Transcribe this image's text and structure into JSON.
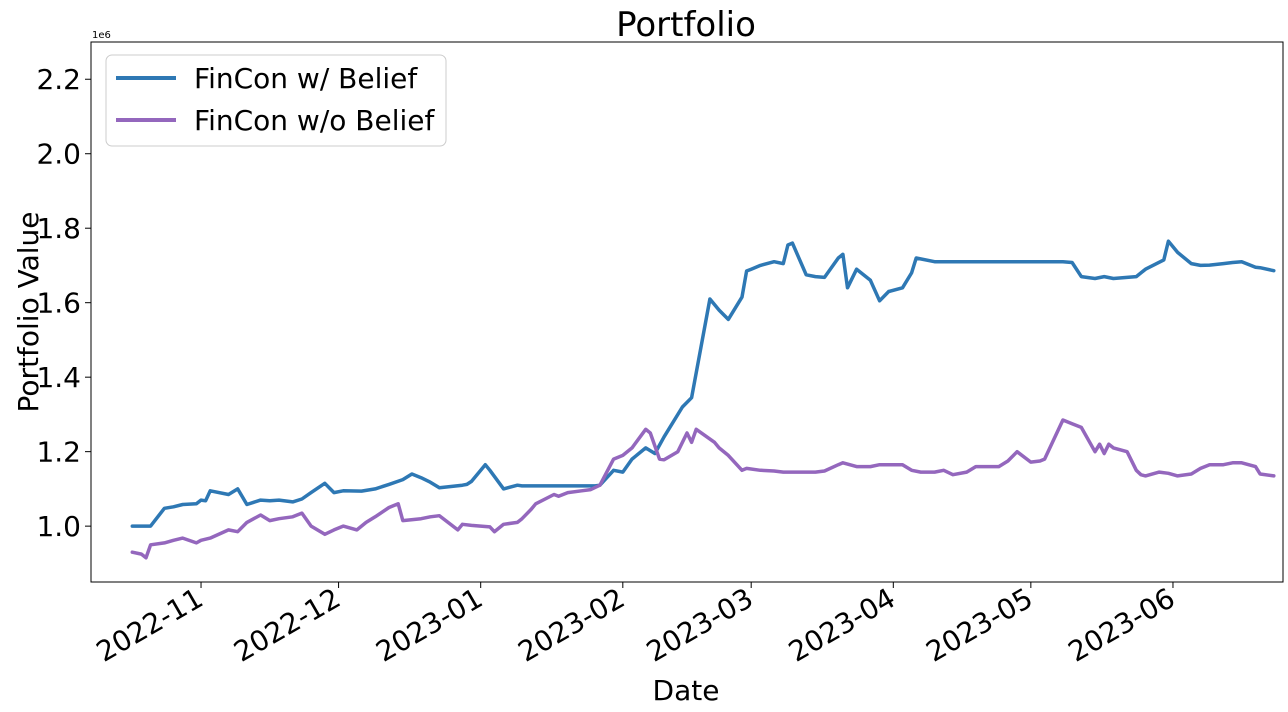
{
  "chart_data": {
    "type": "line",
    "title": "Portfolio",
    "xlabel": "Date",
    "ylabel": "Portfolio Value",
    "y_offset_label": "1e6",
    "ylim": [
      0.85,
      2.3
    ],
    "xlim": [
      "2022-10-08",
      "2023-06-25"
    ],
    "grid": false,
    "legend_position": "top-left",
    "x_ticks": [
      "2022-11",
      "2022-12",
      "2023-01",
      "2023-02",
      "2023-03",
      "2023-04",
      "2023-05",
      "2023-06"
    ],
    "x_tick_dates": [
      "2022-11-01",
      "2022-12-01",
      "2023-01-01",
      "2023-02-01",
      "2023-03-01",
      "2023-04-01",
      "2023-05-01",
      "2023-06-01"
    ],
    "y_ticks": [
      1.0,
      1.2,
      1.4,
      1.6,
      1.8,
      2.0,
      2.2
    ],
    "y_tick_labels": [
      "1.0",
      "1.2",
      "1.4",
      "1.6",
      "1.8",
      "2.0",
      "2.2"
    ],
    "series": [
      {
        "name": "FinCon w/ Belief",
        "color": "#2e78b4",
        "points": [
          [
            "2022-10-17",
            1.0
          ],
          [
            "2022-10-20",
            1.0
          ],
          [
            "2022-10-21",
            1.0
          ],
          [
            "2022-10-24",
            1.048
          ],
          [
            "2022-10-26",
            1.052
          ],
          [
            "2022-10-28",
            1.058
          ],
          [
            "2022-10-31",
            1.06
          ],
          [
            "2022-11-01",
            1.07
          ],
          [
            "2022-11-02",
            1.068
          ],
          [
            "2022-11-03",
            1.095
          ],
          [
            "2022-11-07",
            1.085
          ],
          [
            "2022-11-09",
            1.1
          ],
          [
            "2022-11-11",
            1.058
          ],
          [
            "2022-11-14",
            1.07
          ],
          [
            "2022-11-16",
            1.068
          ],
          [
            "2022-11-18",
            1.07
          ],
          [
            "2022-11-21",
            1.065
          ],
          [
            "2022-11-23",
            1.073
          ],
          [
            "2022-11-25",
            1.09
          ],
          [
            "2022-11-28",
            1.115
          ],
          [
            "2022-11-30",
            1.09
          ],
          [
            "2022-12-02",
            1.095
          ],
          [
            "2022-12-06",
            1.094
          ],
          [
            "2022-12-08",
            1.098
          ],
          [
            "2022-12-09",
            1.1
          ],
          [
            "2022-12-12",
            1.112
          ],
          [
            "2022-12-15",
            1.125
          ],
          [
            "2022-12-17",
            1.14
          ],
          [
            "2022-12-19",
            1.13
          ],
          [
            "2022-12-21",
            1.118
          ],
          [
            "2022-12-23",
            1.103
          ],
          [
            "2022-12-28",
            1.11
          ],
          [
            "2022-12-29",
            1.112
          ],
          [
            "2022-12-30",
            1.12
          ],
          [
            "2023-01-02",
            1.165
          ],
          [
            "2023-01-03",
            1.15
          ],
          [
            "2023-01-06",
            1.1
          ],
          [
            "2023-01-09",
            1.11
          ],
          [
            "2023-01-10",
            1.108
          ],
          [
            "2023-01-26",
            1.108
          ],
          [
            "2023-01-27",
            1.11
          ],
          [
            "2023-01-30",
            1.15
          ],
          [
            "2023-02-01",
            1.145
          ],
          [
            "2023-02-03",
            1.18
          ],
          [
            "2023-02-06",
            1.21
          ],
          [
            "2023-02-08",
            1.195
          ],
          [
            "2023-02-10",
            1.24
          ],
          [
            "2023-02-14",
            1.32
          ],
          [
            "2023-02-16",
            1.345
          ],
          [
            "2023-02-20",
            1.61
          ],
          [
            "2023-02-22",
            1.58
          ],
          [
            "2023-02-24",
            1.555
          ],
          [
            "2023-02-27",
            1.615
          ],
          [
            "2023-02-28",
            1.685
          ],
          [
            "2023-03-01",
            1.69
          ],
          [
            "2023-03-03",
            1.7
          ],
          [
            "2023-03-06",
            1.71
          ],
          [
            "2023-03-08",
            1.705
          ],
          [
            "2023-03-09",
            1.755
          ],
          [
            "2023-03-10",
            1.76
          ],
          [
            "2023-03-13",
            1.675
          ],
          [
            "2023-03-15",
            1.67
          ],
          [
            "2023-03-17",
            1.668
          ],
          [
            "2023-03-20",
            1.72
          ],
          [
            "2023-03-21",
            1.73
          ],
          [
            "2023-03-22",
            1.64
          ],
          [
            "2023-03-24",
            1.69
          ],
          [
            "2023-03-27",
            1.66
          ],
          [
            "2023-03-29",
            1.605
          ],
          [
            "2023-03-31",
            1.63
          ],
          [
            "2023-04-03",
            1.64
          ],
          [
            "2023-04-05",
            1.68
          ],
          [
            "2023-04-06",
            1.72
          ],
          [
            "2023-04-10",
            1.71
          ],
          [
            "2023-04-14",
            1.71
          ],
          [
            "2023-04-17",
            1.71
          ],
          [
            "2023-04-19",
            1.71
          ],
          [
            "2023-04-21",
            1.71
          ],
          [
            "2023-04-24",
            1.71
          ],
          [
            "2023-04-26",
            1.71
          ],
          [
            "2023-04-28",
            1.71
          ],
          [
            "2023-05-01",
            1.71
          ],
          [
            "2023-05-03",
            1.71
          ],
          [
            "2023-05-05",
            1.71
          ],
          [
            "2023-05-08",
            1.71
          ],
          [
            "2023-05-10",
            1.708
          ],
          [
            "2023-05-12",
            1.67
          ],
          [
            "2023-05-15",
            1.665
          ],
          [
            "2023-05-17",
            1.67
          ],
          [
            "2023-05-19",
            1.665
          ],
          [
            "2023-05-22",
            1.668
          ],
          [
            "2023-05-24",
            1.67
          ],
          [
            "2023-05-26",
            1.69
          ],
          [
            "2023-05-30",
            1.715
          ],
          [
            "2023-05-31",
            1.765
          ],
          [
            "2023-06-02",
            1.735
          ],
          [
            "2023-06-05",
            1.705
          ],
          [
            "2023-06-07",
            1.7
          ],
          [
            "2023-06-09",
            1.701
          ],
          [
            "2023-06-12",
            1.705
          ],
          [
            "2023-06-14",
            1.708
          ],
          [
            "2023-06-16",
            1.71
          ],
          [
            "2023-06-19",
            1.695
          ],
          [
            "2023-06-20",
            1.694
          ],
          [
            "2023-06-23",
            1.686
          ]
        ]
      },
      {
        "name": "FinCon w/o Belief",
        "color": "#9467bd",
        "points": [
          [
            "2022-10-17",
            0.93
          ],
          [
            "2022-10-19",
            0.925
          ],
          [
            "2022-10-20",
            0.915
          ],
          [
            "2022-10-21",
            0.95
          ],
          [
            "2022-10-24",
            0.955
          ],
          [
            "2022-10-26",
            0.962
          ],
          [
            "2022-10-28",
            0.968
          ],
          [
            "2022-10-31",
            0.955
          ],
          [
            "2022-11-01",
            0.962
          ],
          [
            "2022-11-03",
            0.968
          ],
          [
            "2022-11-07",
            0.99
          ],
          [
            "2022-11-09",
            0.985
          ],
          [
            "2022-11-11",
            1.01
          ],
          [
            "2022-11-14",
            1.03
          ],
          [
            "2022-11-16",
            1.015
          ],
          [
            "2022-11-18",
            1.02
          ],
          [
            "2022-11-21",
            1.025
          ],
          [
            "2022-11-23",
            1.035
          ],
          [
            "2022-11-25",
            1.0
          ],
          [
            "2022-11-28",
            0.978
          ],
          [
            "2022-11-30",
            0.99
          ],
          [
            "2022-12-02",
            1.0
          ],
          [
            "2022-12-05",
            0.99
          ],
          [
            "2022-12-07",
            1.01
          ],
          [
            "2022-12-09",
            1.025
          ],
          [
            "2022-12-12",
            1.05
          ],
          [
            "2022-12-14",
            1.06
          ],
          [
            "2022-12-15",
            1.015
          ],
          [
            "2022-12-19",
            1.02
          ],
          [
            "2022-12-21",
            1.025
          ],
          [
            "2022-12-23",
            1.028
          ],
          [
            "2022-12-27",
            0.99
          ],
          [
            "2022-12-28",
            1.005
          ],
          [
            "2022-12-30",
            1.002
          ],
          [
            "2023-01-03",
            0.998
          ],
          [
            "2023-01-04",
            0.985
          ],
          [
            "2023-01-06",
            1.005
          ],
          [
            "2023-01-09",
            1.01
          ],
          [
            "2023-01-10",
            1.02
          ],
          [
            "2023-01-12",
            1.045
          ],
          [
            "2023-01-13",
            1.06
          ],
          [
            "2023-01-17",
            1.085
          ],
          [
            "2023-01-18",
            1.08
          ],
          [
            "2023-01-20",
            1.09
          ],
          [
            "2023-01-23",
            1.095
          ],
          [
            "2023-01-25",
            1.098
          ],
          [
            "2023-01-27",
            1.11
          ],
          [
            "2023-01-30",
            1.18
          ],
          [
            "2023-02-01",
            1.19
          ],
          [
            "2023-02-03",
            1.21
          ],
          [
            "2023-02-06",
            1.26
          ],
          [
            "2023-02-07",
            1.25
          ],
          [
            "2023-02-09",
            1.18
          ],
          [
            "2023-02-10",
            1.178
          ],
          [
            "2023-02-13",
            1.2
          ],
          [
            "2023-02-15",
            1.25
          ],
          [
            "2023-02-16",
            1.225
          ],
          [
            "2023-02-17",
            1.26
          ],
          [
            "2023-02-21",
            1.225
          ],
          [
            "2023-02-22",
            1.21
          ],
          [
            "2023-02-24",
            1.19
          ],
          [
            "2023-02-27",
            1.15
          ],
          [
            "2023-02-28",
            1.155
          ],
          [
            "2023-03-03",
            1.15
          ],
          [
            "2023-03-06",
            1.148
          ],
          [
            "2023-03-08",
            1.145
          ],
          [
            "2023-03-10",
            1.145
          ],
          [
            "2023-03-13",
            1.145
          ],
          [
            "2023-03-15",
            1.145
          ],
          [
            "2023-03-17",
            1.148
          ],
          [
            "2023-03-20",
            1.165
          ],
          [
            "2023-03-21",
            1.17
          ],
          [
            "2023-03-24",
            1.16
          ],
          [
            "2023-03-27",
            1.16
          ],
          [
            "2023-03-29",
            1.165
          ],
          [
            "2023-03-31",
            1.165
          ],
          [
            "2023-04-03",
            1.165
          ],
          [
            "2023-04-05",
            1.15
          ],
          [
            "2023-04-07",
            1.145
          ],
          [
            "2023-04-10",
            1.145
          ],
          [
            "2023-04-12",
            1.15
          ],
          [
            "2023-04-14",
            1.138
          ],
          [
            "2023-04-17",
            1.145
          ],
          [
            "2023-04-19",
            1.16
          ],
          [
            "2023-04-21",
            1.16
          ],
          [
            "2023-04-24",
            1.16
          ],
          [
            "2023-04-26",
            1.175
          ],
          [
            "2023-04-28",
            1.2
          ],
          [
            "2023-05-01",
            1.172
          ],
          [
            "2023-05-03",
            1.175
          ],
          [
            "2023-05-04",
            1.18
          ],
          [
            "2023-05-08",
            1.285
          ],
          [
            "2023-05-10",
            1.275
          ],
          [
            "2023-05-12",
            1.265
          ],
          [
            "2023-05-15",
            1.2
          ],
          [
            "2023-05-16",
            1.22
          ],
          [
            "2023-05-17",
            1.195
          ],
          [
            "2023-05-18",
            1.22
          ],
          [
            "2023-05-19",
            1.21
          ],
          [
            "2023-05-22",
            1.2
          ],
          [
            "2023-05-24",
            1.15
          ],
          [
            "2023-05-25",
            1.138
          ],
          [
            "2023-05-26",
            1.135
          ],
          [
            "2023-05-29",
            1.145
          ],
          [
            "2023-05-31",
            1.142
          ],
          [
            "2023-06-02",
            1.135
          ],
          [
            "2023-06-05",
            1.14
          ],
          [
            "2023-06-07",
            1.155
          ],
          [
            "2023-06-09",
            1.165
          ],
          [
            "2023-06-12",
            1.165
          ],
          [
            "2023-06-14",
            1.17
          ],
          [
            "2023-06-16",
            1.17
          ],
          [
            "2023-06-19",
            1.16
          ],
          [
            "2023-06-20",
            1.14
          ],
          [
            "2023-06-23",
            1.135
          ]
        ]
      }
    ]
  }
}
